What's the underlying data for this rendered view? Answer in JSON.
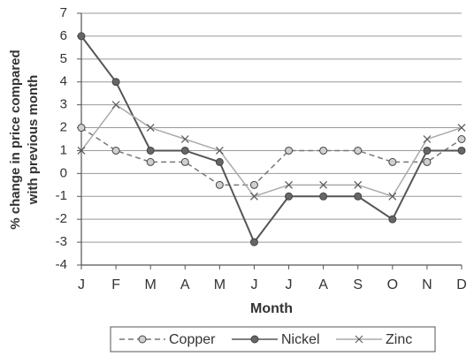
{
  "chart_data": {
    "type": "line",
    "y_label": [
      "% change in price compared",
      "with previous month"
    ],
    "x_label": "Month",
    "categories": [
      "J",
      "F",
      "M",
      "A",
      "M",
      "J",
      "J",
      "A",
      "S",
      "O",
      "N",
      "D"
    ],
    "series": [
      {
        "name": "Copper",
        "color": "#777777",
        "marker_fill": "#d0d0d0",
        "marker": "circle",
        "dashed": true,
        "values": [
          2,
          1,
          0.5,
          0.5,
          -0.5,
          -0.5,
          1,
          1,
          1,
          0.5,
          0.5,
          1.5
        ]
      },
      {
        "name": "Nickel",
        "color": "#555555",
        "marker_fill": "#666666",
        "marker": "circle",
        "dashed": false,
        "values": [
          6,
          4,
          1,
          1,
          0.5,
          -3,
          -1,
          -1,
          -1,
          -2,
          1,
          1
        ]
      },
      {
        "name": "Zinc",
        "color": "#aaaaaa",
        "marker_fill": "#aaaaaa",
        "marker": "x",
        "dashed": false,
        "values": [
          1,
          3,
          2,
          1.5,
          1,
          -1,
          -0.5,
          -0.5,
          -0.5,
          -1,
          1.5,
          2
        ]
      }
    ],
    "ylim": [
      -4,
      7
    ],
    "yticks": [
      -4,
      -3,
      -2,
      -1,
      0,
      1,
      2,
      3,
      4,
      5,
      6,
      7
    ],
    "grid": true
  }
}
